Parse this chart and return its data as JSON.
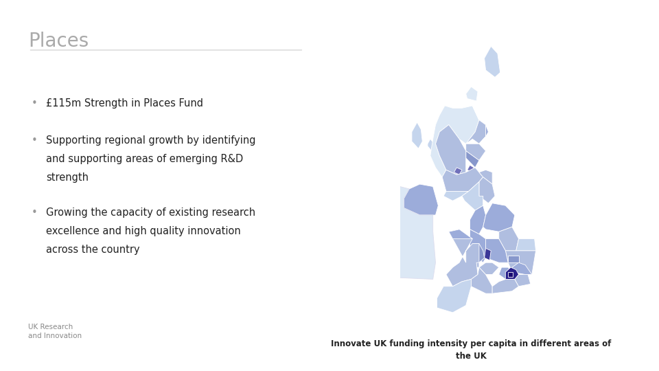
{
  "title": "Places",
  "title_color": "#aaaaaa",
  "title_fontsize": 20,
  "bg_color": "#ffffff",
  "line_color": "#cccccc",
  "bullet1": "£115m Strength in Places Fund",
  "bullet2a": "Supporting regional growth by identifying",
  "bullet2b": "and supporting areas of emerging R&D",
  "bullet2c": "strength",
  "bullet3a": "Growing the capacity of existing research",
  "bullet3b": "excellence and high quality innovation",
  "bullet3c": "across the country",
  "bullet_color": "#999999",
  "text_color": "#222222",
  "text_fontsize": 10.5,
  "caption": "Innovate UK funding intensity per capita in different areas of\nthe UK",
  "caption_fontsize": 8.5,
  "caption_color": "#222222",
  "logo_text": "UK Research\nand Innovation",
  "logo_color": "#888888",
  "logo_fontsize": 7.5,
  "map_colors": {
    "c1": "#dce8f5",
    "c2": "#c5d5ed",
    "c3": "#b0bee0",
    "c4": "#9cacda",
    "c5": "#8898cc",
    "c6": "#7070bb",
    "c7": "#5050a8",
    "c8": "#3c3898",
    "c9": "#28208a",
    "c10": "#180870"
  }
}
